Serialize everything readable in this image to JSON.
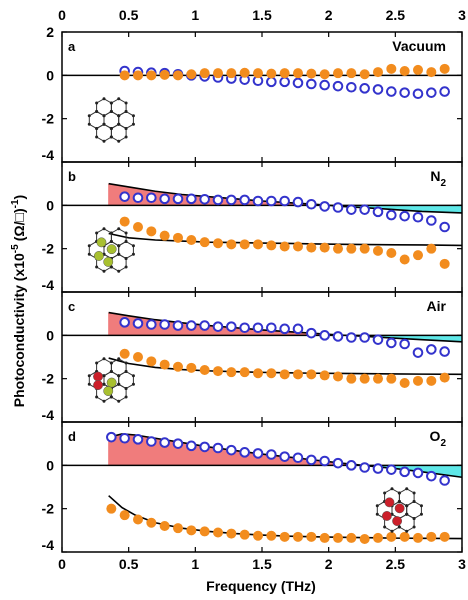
{
  "colors": {
    "real_marker": "#f28c1e",
    "imag_marker": "#3333cc",
    "positive_fill": "#f07c7c",
    "negative_fill": "#5fe8e8",
    "fit_line": "#000000",
    "atom_dark": "#222222",
    "atom_yellow": "#a8c030",
    "atom_red": "#cc1f2a"
  },
  "chart_data": {
    "type": "scatter",
    "xlabel": "Frequency (THz)",
    "ylabel": "Photoconductivity (x10",
    "ylabel_exp": "-5",
    "ylabel_unit": "(Ω/□)",
    "ylabel_unit_exp": "-1",
    "ylabel_close": ")",
    "xlim": [
      0,
      3
    ],
    "ylim": [
      -4,
      2
    ],
    "x_ticks": [
      "0",
      "0.5",
      "1",
      "1.5",
      "2",
      "2.5",
      "3"
    ],
    "y_ticks": [
      "2",
      "0",
      "-2",
      "-4"
    ],
    "y_ticks_lower": [
      "0",
      "-2",
      "-4"
    ],
    "panels": [
      {
        "letter": "a",
        "title": "Vacuum",
        "title_sub": "",
        "adsorbate": "none",
        "series": [
          {
            "marker": "open-circle",
            "color": "imag",
            "x": [
              0.47,
              0.57,
              0.67,
              0.77,
              0.87,
              0.97,
              1.07,
              1.17,
              1.27,
              1.37,
              1.47,
              1.57,
              1.67,
              1.77,
              1.87,
              1.97,
              2.07,
              2.17,
              2.27,
              2.37,
              2.47,
              2.57,
              2.67,
              2.77,
              2.87
            ],
            "y": [
              0.2,
              0.15,
              0.12,
              0.1,
              0.05,
              0.0,
              -0.05,
              -0.1,
              -0.15,
              -0.2,
              -0.25,
              -0.3,
              -0.3,
              -0.35,
              -0.4,
              -0.45,
              -0.5,
              -0.55,
              -0.6,
              -0.65,
              -0.75,
              -0.8,
              -0.85,
              -0.8,
              -0.75
            ]
          },
          {
            "marker": "filled-circle",
            "color": "real",
            "x": [
              0.47,
              0.57,
              0.67,
              0.77,
              0.87,
              0.97,
              1.07,
              1.17,
              1.27,
              1.37,
              1.47,
              1.57,
              1.67,
              1.77,
              1.87,
              1.97,
              2.07,
              2.17,
              2.27,
              2.37,
              2.47,
              2.57,
              2.67,
              2.77,
              2.87
            ],
            "y": [
              0.0,
              0.0,
              0.0,
              0.02,
              0.0,
              0.05,
              0.1,
              0.1,
              0.1,
              0.12,
              0.1,
              0.08,
              0.1,
              0.1,
              0.08,
              0.05,
              0.1,
              0.1,
              0.05,
              0.15,
              0.3,
              0.2,
              0.25,
              0.15,
              0.3
            ]
          }
        ]
      },
      {
        "letter": "b",
        "title": "N",
        "title_sub": "2",
        "adsorbate": "yellow",
        "fit_imag": {
          "x": [
            0.35,
            0.5,
            0.7,
            0.9,
            1.1,
            1.3,
            1.5,
            1.7,
            1.9,
            2.1,
            2.3,
            2.5,
            2.7,
            3.0
          ],
          "y": [
            1.0,
            0.85,
            0.65,
            0.5,
            0.4,
            0.3,
            0.2,
            0.12,
            0.05,
            -0.05,
            -0.12,
            -0.2,
            -0.28,
            -0.35
          ]
        },
        "fit_real": {
          "x": [
            0.35,
            0.5,
            0.7,
            0.9,
            1.1,
            1.3,
            1.5,
            1.7,
            1.9,
            2.1,
            2.3,
            2.5,
            2.7,
            3.0
          ],
          "y": [
            -1.3,
            -1.5,
            -1.6,
            -1.65,
            -1.7,
            -1.72,
            -1.74,
            -1.76,
            -1.78,
            -1.8,
            -1.81,
            -1.82,
            -1.83,
            -1.85
          ]
        },
        "series": [
          {
            "marker": "open-circle",
            "color": "imag",
            "x": [
              0.47,
              0.57,
              0.67,
              0.77,
              0.87,
              0.97,
              1.07,
              1.17,
              1.27,
              1.37,
              1.47,
              1.57,
              1.67,
              1.77,
              1.87,
              1.97,
              2.07,
              2.17,
              2.27,
              2.37,
              2.47,
              2.57,
              2.67,
              2.77,
              2.87
            ],
            "y": [
              0.4,
              0.35,
              0.35,
              0.3,
              0.3,
              0.3,
              0.28,
              0.25,
              0.25,
              0.25,
              0.2,
              0.2,
              0.2,
              0.15,
              0.05,
              -0.05,
              -0.1,
              -0.2,
              -0.2,
              -0.3,
              -0.45,
              -0.5,
              -0.55,
              -0.7,
              -1.0
            ]
          },
          {
            "marker": "filled-circle",
            "color": "real",
            "x": [
              0.47,
              0.57,
              0.67,
              0.77,
              0.87,
              0.97,
              1.07,
              1.17,
              1.27,
              1.37,
              1.47,
              1.57,
              1.67,
              1.77,
              1.87,
              1.97,
              2.07,
              2.17,
              2.27,
              2.37,
              2.47,
              2.57,
              2.67,
              2.77,
              2.87
            ],
            "y": [
              -0.75,
              -1.0,
              -1.2,
              -1.4,
              -1.5,
              -1.6,
              -1.7,
              -1.75,
              -1.8,
              -1.8,
              -1.8,
              -1.85,
              -1.9,
              -1.9,
              -1.95,
              -1.95,
              -2.0,
              -2.0,
              -2.0,
              -2.1,
              -2.2,
              -2.5,
              -2.3,
              -2.0,
              -2.7
            ]
          }
        ]
      },
      {
        "letter": "c",
        "title": "Air",
        "title_sub": "",
        "adsorbate": "mixed",
        "fit_imag": {
          "x": [
            0.35,
            0.5,
            0.7,
            0.9,
            1.1,
            1.3,
            1.5,
            1.7,
            1.9,
            2.1,
            2.3,
            2.5,
            2.7,
            3.0
          ],
          "y": [
            1.05,
            0.9,
            0.72,
            0.58,
            0.45,
            0.35,
            0.25,
            0.17,
            0.09,
            0.01,
            -0.06,
            -0.13,
            -0.2,
            -0.3
          ]
        },
        "fit_real": {
          "x": [
            0.35,
            0.5,
            0.7,
            0.9,
            1.1,
            1.3,
            1.5,
            1.7,
            1.9,
            2.1,
            2.3,
            2.5,
            2.7,
            3.0
          ],
          "y": [
            -1.05,
            -1.3,
            -1.48,
            -1.58,
            -1.64,
            -1.68,
            -1.71,
            -1.73,
            -1.75,
            -1.76,
            -1.77,
            -1.78,
            -1.79,
            -1.8
          ]
        },
        "series": [
          {
            "marker": "open-circle",
            "color": "imag",
            "x": [
              0.47,
              0.57,
              0.67,
              0.77,
              0.87,
              0.97,
              1.07,
              1.17,
              1.27,
              1.37,
              1.47,
              1.57,
              1.67,
              1.77,
              1.87,
              1.97,
              2.07,
              2.17,
              2.27,
              2.37,
              2.47,
              2.57,
              2.67,
              2.77,
              2.87
            ],
            "y": [
              0.6,
              0.55,
              0.5,
              0.5,
              0.45,
              0.45,
              0.45,
              0.4,
              0.4,
              0.35,
              0.35,
              0.35,
              0.3,
              0.3,
              0.1,
              0.0,
              -0.05,
              -0.1,
              -0.1,
              -0.2,
              -0.35,
              -0.4,
              -0.8,
              -0.65,
              -0.75
            ]
          },
          {
            "marker": "filled-circle",
            "color": "real",
            "x": [
              0.47,
              0.57,
              0.67,
              0.77,
              0.87,
              0.97,
              1.07,
              1.17,
              1.27,
              1.37,
              1.47,
              1.57,
              1.67,
              1.77,
              1.87,
              1.97,
              2.07,
              2.17,
              2.27,
              2.37,
              2.47,
              2.57,
              2.67,
              2.77,
              2.87
            ],
            "y": [
              -0.85,
              -1.0,
              -1.2,
              -1.35,
              -1.45,
              -1.5,
              -1.6,
              -1.65,
              -1.7,
              -1.7,
              -1.75,
              -1.75,
              -1.8,
              -1.8,
              -1.8,
              -1.85,
              -1.9,
              -2.0,
              -2.0,
              -2.0,
              -2.0,
              -2.2,
              -2.1,
              -2.1,
              -1.95
            ]
          }
        ]
      },
      {
        "letter": "d",
        "title": "O",
        "title_sub": "2",
        "adsorbate": "red",
        "fit_imag": {
          "x": [
            0.35,
            0.45,
            0.55,
            0.7,
            0.9,
            1.1,
            1.3,
            1.5,
            1.7,
            1.9,
            2.1,
            2.3,
            2.5,
            2.7,
            3.0
          ],
          "y": [
            1.3,
            1.45,
            1.4,
            1.25,
            1.05,
            0.85,
            0.68,
            0.52,
            0.38,
            0.24,
            0.1,
            -0.03,
            -0.15,
            -0.3,
            -0.55
          ]
        },
        "fit_real": {
          "x": [
            0.35,
            0.45,
            0.55,
            0.7,
            0.9,
            1.1,
            1.3,
            1.5,
            1.7,
            1.9,
            2.1,
            2.3,
            2.5,
            2.7,
            3.0
          ],
          "y": [
            -1.4,
            -1.95,
            -2.3,
            -2.65,
            -2.9,
            -3.05,
            -3.15,
            -3.22,
            -3.27,
            -3.3,
            -3.32,
            -3.34,
            -3.36,
            -3.37,
            -3.38
          ]
        },
        "series": [
          {
            "marker": "open-circle",
            "color": "imag",
            "x": [
              0.37,
              0.47,
              0.57,
              0.67,
              0.77,
              0.87,
              0.97,
              1.07,
              1.17,
              1.27,
              1.37,
              1.47,
              1.57,
              1.67,
              1.77,
              1.87,
              1.97,
              2.07,
              2.17,
              2.27,
              2.37,
              2.47,
              2.57,
              2.67,
              2.77,
              2.87
            ],
            "y": [
              1.3,
              1.25,
              1.2,
              1.1,
              1.05,
              1.0,
              0.9,
              0.85,
              0.8,
              0.7,
              0.6,
              0.55,
              0.5,
              0.4,
              0.35,
              0.25,
              0.2,
              0.1,
              0.0,
              -0.1,
              -0.15,
              -0.2,
              -0.3,
              -0.35,
              -0.5,
              -0.7
            ]
          },
          {
            "marker": "filled-circle",
            "color": "real",
            "x": [
              0.37,
              0.47,
              0.57,
              0.67,
              0.77,
              0.87,
              0.97,
              1.07,
              1.17,
              1.27,
              1.37,
              1.47,
              1.57,
              1.67,
              1.77,
              1.87,
              1.97,
              2.07,
              2.17,
              2.27,
              2.37,
              2.47,
              2.57,
              2.67,
              2.77,
              2.87
            ],
            "y": [
              -2.0,
              -2.3,
              -2.5,
              -2.65,
              -2.8,
              -2.9,
              -3.0,
              -3.05,
              -3.1,
              -3.15,
              -3.2,
              -3.25,
              -3.25,
              -3.3,
              -3.3,
              -3.3,
              -3.35,
              -3.35,
              -3.35,
              -3.4,
              -3.35,
              -3.3,
              -3.3,
              -3.35,
              -3.3,
              -3.3
            ]
          }
        ]
      }
    ]
  }
}
